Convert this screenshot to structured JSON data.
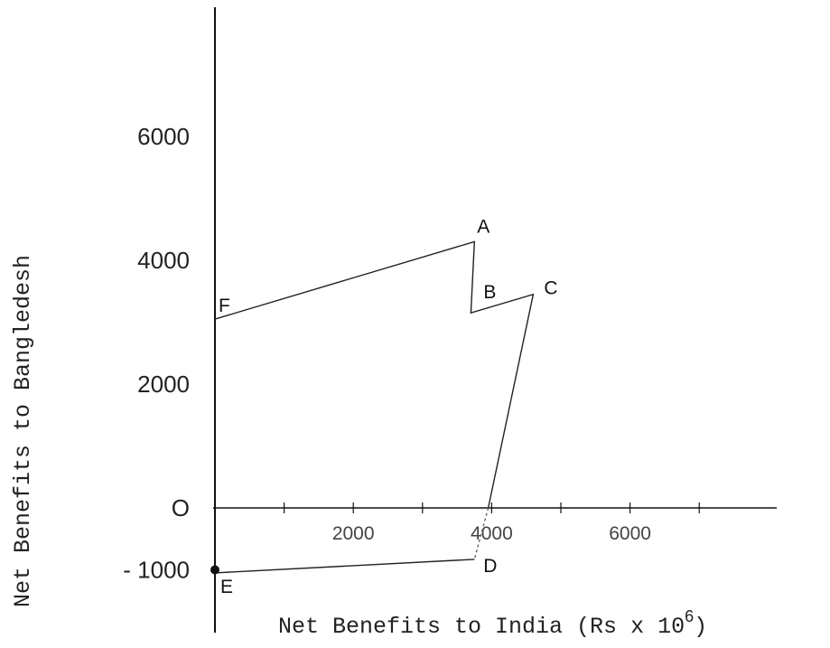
{
  "chart_data": {
    "type": "line",
    "title": "",
    "xlabel": "Net Benefits to India (Rs x 10",
    "xlabel_superscript": "6",
    "xlabel_suffix": ")",
    "ylabel": "Net Benefits to Bangledesh",
    "xlim": [
      0,
      8200
    ],
    "ylim": [
      -1700,
      7800
    ],
    "grid": false,
    "x_ticks": [
      {
        "value": 2000,
        "label": "2000"
      },
      {
        "value": 4000,
        "label": "4000"
      },
      {
        "value": 6000,
        "label": "6000"
      }
    ],
    "x_minor_ticks": [
      1000,
      3000,
      5000,
      7000
    ],
    "y_ticks": [
      {
        "value": 6000,
        "label": "6000"
      },
      {
        "value": 4000,
        "label": "4000"
      },
      {
        "value": 2000,
        "label": "2000"
      },
      {
        "value": 0,
        "label": "O"
      },
      {
        "value": -1000,
        "label": "- 1000"
      }
    ],
    "points": [
      {
        "label": "F",
        "x": 0,
        "y": 3050
      },
      {
        "label": "A",
        "x": 3750,
        "y": 4300
      },
      {
        "label": "B",
        "x": 3700,
        "y": 3150
      },
      {
        "label": "C",
        "x": 4600,
        "y": 3450
      },
      {
        "label": "D",
        "x": 3750,
        "y": -830
      },
      {
        "label": "E",
        "x": 0,
        "y": -1050
      }
    ],
    "series": [
      {
        "values": [
          [
            0,
            3050
          ],
          [
            3750,
            4300
          ],
          [
            3700,
            3150
          ],
          [
            4600,
            3450
          ],
          [
            3950,
            0
          ]
        ]
      },
      {
        "style": "dashed",
        "values": [
          [
            3950,
            0
          ],
          [
            3750,
            -830
          ]
        ]
      },
      {
        "values": [
          [
            3750,
            -830
          ],
          [
            0,
            -1050
          ]
        ]
      }
    ],
    "markers": [
      {
        "x": 0,
        "y": -1000
      }
    ]
  }
}
